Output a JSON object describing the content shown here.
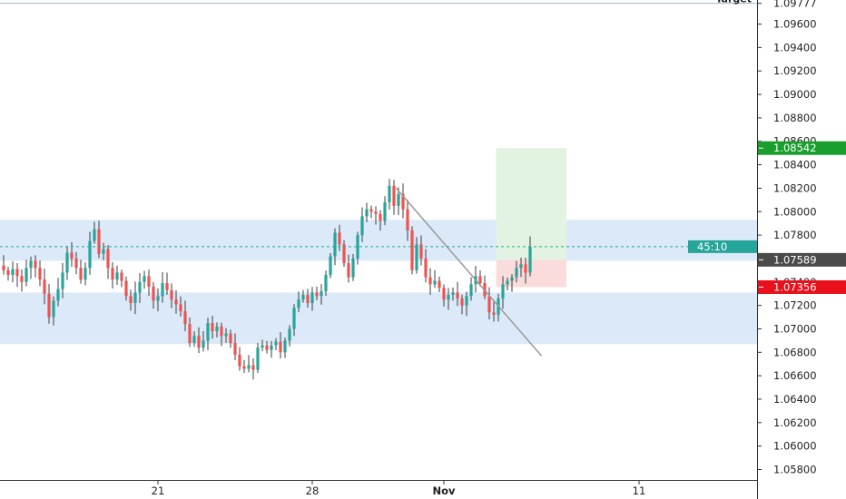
{
  "chart_data": {
    "type": "candlestick",
    "instrument": "",
    "y_axis": {
      "range": [
        1.0572,
        1.0982
      ],
      "ticks": [
        "1.05800",
        "1.06000",
        "1.06200",
        "1.06400",
        "1.06600",
        "1.06800",
        "1.07000",
        "1.07200",
        "1.07400",
        "1.07600",
        "1.07800",
        "1.08000",
        "1.08200",
        "1.08400",
        "1.08600",
        "1.08800",
        "1.09000",
        "1.09200",
        "1.09400",
        "1.09600"
      ],
      "tick_values": [
        1.058,
        1.06,
        1.062,
        1.064,
        1.066,
        1.068,
        1.07,
        1.072,
        1.074,
        1.076,
        1.078,
        1.08,
        1.082,
        1.084,
        1.086,
        1.088,
        1.09,
        1.092,
        1.094,
        1.096
      ]
    },
    "x_axis": {
      "ticks": [
        {
          "label": "21",
          "bar": 34,
          "bold": false
        },
        {
          "label": "28",
          "bar": 68,
          "bold": false
        },
        {
          "label": "Nov",
          "bar": 97,
          "bold": true
        },
        {
          "label": "11",
          "bar": 140,
          "bold": false
        }
      ]
    },
    "price_tags": {
      "target": {
        "label": "Target",
        "value": "1.09777",
        "price": 1.09777,
        "color": "#ffffff"
      },
      "take_profit": {
        "value": "1.08542",
        "price": 1.08542,
        "color": "#1a9e2e"
      },
      "countdown": {
        "value": "45:10",
        "price": 1.07701,
        "color": "#26a69a"
      },
      "last_price": {
        "value": "1.07589",
        "price": 1.07589,
        "color": "#4a4a4a"
      },
      "stop_loss": {
        "value": "1.07356",
        "price": 1.07356,
        "color": "#e8101a"
      }
    },
    "current_price_line": 1.07701,
    "zones": [
      {
        "name": "",
        "from": 1.0758,
        "to": 1.0793,
        "color": "#dce9f8"
      },
      {
        "name": "",
        "from": 1.0687,
        "to": 1.0731,
        "color": "#dce9f8"
      }
    ],
    "trendline": {
      "from": {
        "bar": 86.5,
        "price": 1.082
      },
      "to": {
        "bar": 118.5,
        "price": 1.0677
      },
      "color": "#999999"
    },
    "position": {
      "entry": 1.07589,
      "take_profit": 1.08542,
      "stop_loss": 1.07356,
      "from_bar": 108.5,
      "to_bar": 124
    },
    "colors": {
      "up": "#26a69a",
      "down": "#ef5350",
      "wick": "#3d3d3d"
    },
    "close_series": [
      1.075,
      1.0746,
      1.0751,
      1.0745,
      1.074,
      1.0752,
      1.0758,
      1.0752,
      1.0742,
      1.073,
      1.071,
      1.0724,
      1.0734,
      1.0748,
      1.0765,
      1.076,
      1.0752,
      1.0742,
      1.0752,
      1.0775,
      1.0785,
      1.0764,
      1.0768,
      1.0752,
      1.0742,
      1.0748,
      1.0741,
      1.0728,
      1.0722,
      1.0731,
      1.074,
      1.0745,
      1.0736,
      1.0724,
      1.0728,
      1.0739,
      1.0733,
      1.0725,
      1.0721,
      1.0715,
      1.0704,
      1.0688,
      1.0694,
      1.0684,
      1.069,
      1.0705,
      1.0698,
      1.0702,
      1.0694,
      1.0696,
      1.0688,
      1.0678,
      1.0668,
      1.0666,
      1.0669,
      1.0665,
      1.0684,
      1.0686,
      1.0682,
      1.0686,
      1.0689,
      1.068,
      1.069,
      1.07,
      1.0718,
      1.0725,
      1.0729,
      1.0722,
      1.0731,
      1.0728,
      1.0732,
      1.0746,
      1.0762,
      1.0782,
      1.0772,
      1.0756,
      1.0744,
      1.076,
      1.078,
      1.0796,
      1.0802,
      1.08,
      1.0798,
      1.0792,
      1.0808,
      1.0822,
      1.0805,
      1.0815,
      1.0802,
      1.0784,
      1.075,
      1.0772,
      1.076,
      1.0744,
      1.0738,
      1.0741,
      1.0735,
      1.0725,
      1.0729,
      1.0731,
      1.0726,
      1.072,
      1.0728,
      1.0738,
      1.0745,
      1.0739,
      1.0728,
      1.0714,
      1.0712,
      1.0726,
      1.0738,
      1.0741,
      1.0744,
      1.0752,
      1.0755,
      1.0748,
      1.077
    ]
  }
}
